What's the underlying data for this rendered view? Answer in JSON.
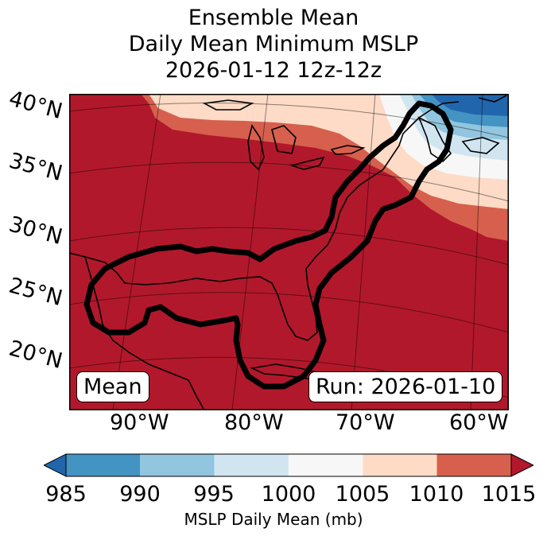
{
  "title": {
    "line1": "Ensemble Mean",
    "line2": "Daily Mean Minimum MSLP",
    "line3": "2026-01-12 12z-12z"
  },
  "latitude_labels": [
    "40°N",
    "35°N",
    "30°N",
    "25°N",
    "20°N"
  ],
  "longitude_labels": [
    "90°W",
    "80°W",
    "70°W",
    "60°W"
  ],
  "mean_label": "Mean",
  "run_label": "Run: 2026-01-10",
  "colorbar": {
    "ticks": [
      "985",
      "990",
      "995",
      "1000",
      "1005",
      "1010",
      "1015"
    ],
    "label": "MSLP Daily Mean (mb)",
    "colors": [
      "#2166ac",
      "#4393c3",
      "#92c5de",
      "#d1e5f0",
      "#f7f7f7",
      "#fddbc7",
      "#d6604d",
      "#b2182b"
    ]
  }
}
